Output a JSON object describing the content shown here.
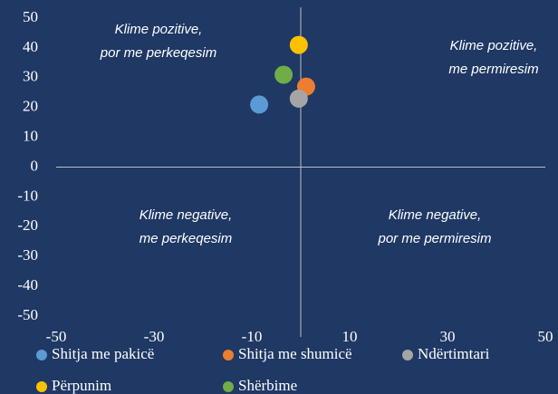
{
  "chart_data": {
    "type": "scatter",
    "xlim": [
      -50,
      50
    ],
    "xticks": [
      -50,
      -30,
      -10,
      10,
      30,
      50
    ],
    "ylim": [
      -50,
      50
    ],
    "yticks": [
      -50,
      -40,
      -30,
      -20,
      -10,
      0,
      10,
      20,
      30,
      40,
      50
    ],
    "grid": false,
    "legend": "bottom",
    "series": [
      {
        "name": "Shitja me pakicë",
        "color": "#5b9bd5",
        "x": [
          -8.5
        ],
        "y": [
          21
        ]
      },
      {
        "name": "Shitja me shumicë",
        "color": "#ed7d31",
        "x": [
          1.1
        ],
        "y": [
          27
        ]
      },
      {
        "name": "Ndërtimtari",
        "color": "#a5a5a5",
        "x": [
          -0.4
        ],
        "y": [
          23
        ]
      },
      {
        "name": "Përpunim",
        "color": "#ffc000",
        "x": [
          -0.4
        ],
        "y": [
          41
        ]
      },
      {
        "name": "Shërbime",
        "color": "#70ad47",
        "x": [
          -3.5
        ],
        "y": [
          31
        ]
      }
    ],
    "annotations": [
      {
        "lines": [
          "Klime pozitive,",
          "por me perkeqesim"
        ]
      },
      {
        "lines": [
          "Klime pozitive,",
          "me permiresim"
        ]
      },
      {
        "lines": [
          "Klime negative,",
          "me perkeqesim"
        ]
      },
      {
        "lines": [
          "Klime negative,",
          "por me permiresim"
        ]
      }
    ]
  }
}
